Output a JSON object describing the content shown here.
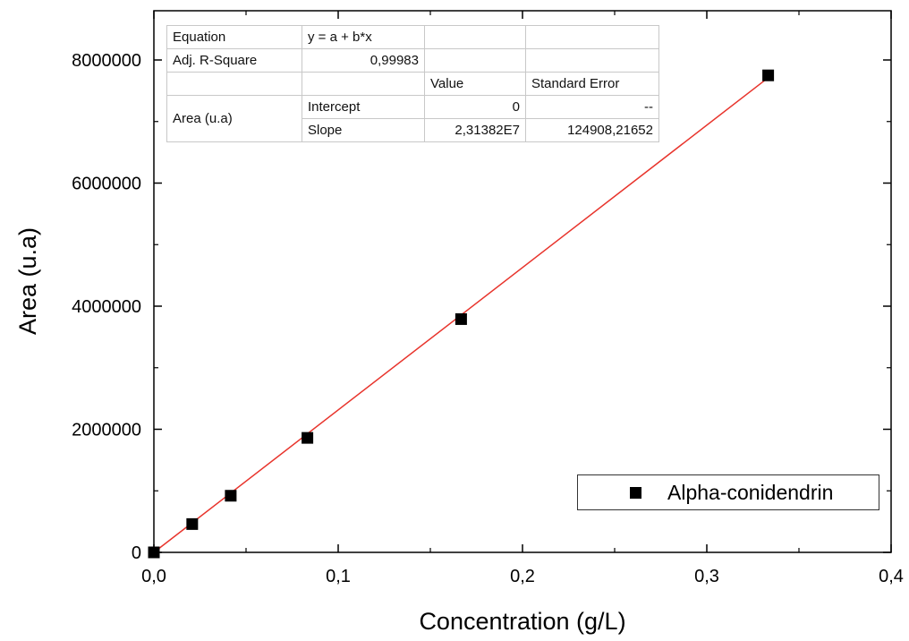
{
  "chart_data": {
    "type": "scatter",
    "xlabel": "Concentration (g/L)",
    "ylabel": "Area (u.a)",
    "xlim": [
      0,
      0.4
    ],
    "ylim": [
      0,
      8800000
    ],
    "x_ticks": [
      "0,0",
      "0,1",
      "0,2",
      "0,3",
      "0,4"
    ],
    "y_ticks": [
      "0",
      "2000000",
      "4000000",
      "6000000",
      "8000000"
    ],
    "series": [
      {
        "name": "Alpha-conidendrin",
        "marker": "square",
        "color": "#000000",
        "points": [
          {
            "x": 0.0,
            "y": 0
          },
          {
            "x": 0.0208,
            "y": 460000
          },
          {
            "x": 0.0417,
            "y": 920000
          },
          {
            "x": 0.0833,
            "y": 1860000
          },
          {
            "x": 0.1667,
            "y": 3790000
          },
          {
            "x": 0.3333,
            "y": 7750000
          }
        ]
      }
    ],
    "fit_line": {
      "intercept": 0,
      "slope": 23138200,
      "x_range": [
        0,
        0.3333
      ],
      "color": "#e8342c"
    },
    "grid": false,
    "legend": {
      "position": "bottom-right",
      "entries": [
        "Alpha-conidendrin"
      ]
    }
  },
  "fit_table": {
    "equation_label": "Equation",
    "equation": "y = a + b*x",
    "adj_r_square_label": "Adj. R-Square",
    "adj_r_square": "0,99983",
    "value_header": "Value",
    "std_error_header": "Standard Error",
    "row_group_label": "Area (u.a)",
    "intercept_label": "Intercept",
    "intercept_value": "0",
    "intercept_error": "--",
    "slope_label": "Slope",
    "slope_value": "2,31382E7",
    "slope_error": "124908,21652"
  }
}
